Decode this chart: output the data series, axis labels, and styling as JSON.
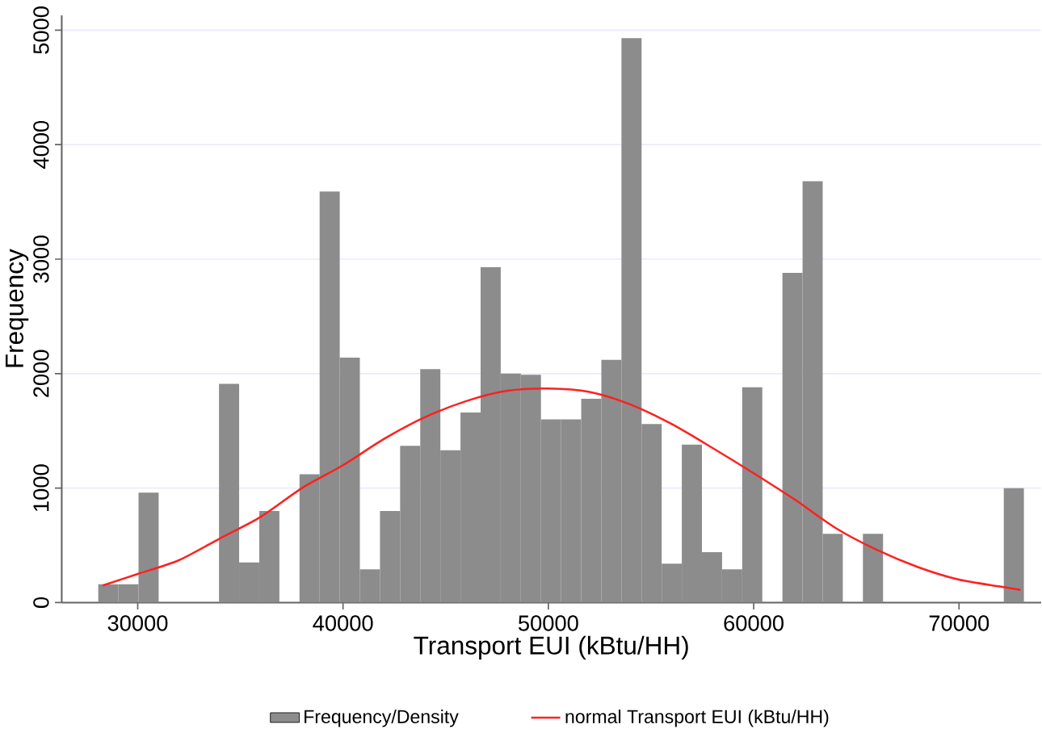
{
  "chart_data": {
    "type": "histogram",
    "xlabel": "Transport EUI (kBtu/HH)",
    "ylabel": "Frequency",
    "bins": [
      28080,
      29060,
      30040,
      31020,
      32000,
      32980,
      33960,
      34940,
      35920,
      36900,
      37880,
      38860,
      39840,
      40820,
      41800,
      42780,
      43760,
      44740,
      45720,
      46700,
      47680,
      48660,
      49640,
      50620,
      51600,
      52580,
      53560,
      54540,
      55520,
      56500,
      57480,
      58460,
      59440,
      60420,
      61400,
      62380,
      63360,
      64340,
      65320,
      66300,
      67280,
      68260,
      69240,
      70220,
      71200,
      72180,
      73160
    ],
    "series": [
      {
        "name": "Frequency/Density",
        "color": "#8c8c8c",
        "values": [
          160,
          160,
          960,
          0,
          0,
          0,
          1910,
          350,
          800,
          0,
          1120,
          3590,
          2140,
          290,
          800,
          1370,
          2040,
          1330,
          1660,
          2930,
          2000,
          1990,
          1600,
          1600,
          1780,
          2120,
          4930,
          1560,
          340,
          1380,
          440,
          290,
          1880,
          0,
          2880,
          3680,
          600,
          0,
          600,
          0,
          0,
          0,
          0,
          0,
          0,
          1000
        ]
      },
      {
        "type": "line",
        "name": "normal Transport EUI (kBtu/HH)",
        "color": "#ff2020",
        "x": [
          28300,
          30000,
          32000,
          34000,
          36000,
          38000,
          40000,
          42000,
          44000,
          46000,
          48000,
          50000,
          52000,
          54000,
          56000,
          58000,
          60000,
          62000,
          64000,
          66000,
          68000,
          70000,
          72000,
          73000
        ],
        "values": [
          150,
          250,
          370,
          560,
          750,
          1000,
          1200,
          1430,
          1620,
          1760,
          1850,
          1870,
          1840,
          1730,
          1560,
          1350,
          1130,
          900,
          650,
          460,
          310,
          200,
          140,
          110
        ]
      }
    ],
    "xlim": [
      26300,
      74000
    ],
    "ylim": [
      0,
      5130
    ],
    "xticks": [
      30000,
      40000,
      50000,
      60000,
      70000
    ],
    "yticks": [
      0,
      1000,
      2000,
      3000,
      4000,
      5000
    ],
    "grid": "y",
    "legend": "bottom"
  }
}
